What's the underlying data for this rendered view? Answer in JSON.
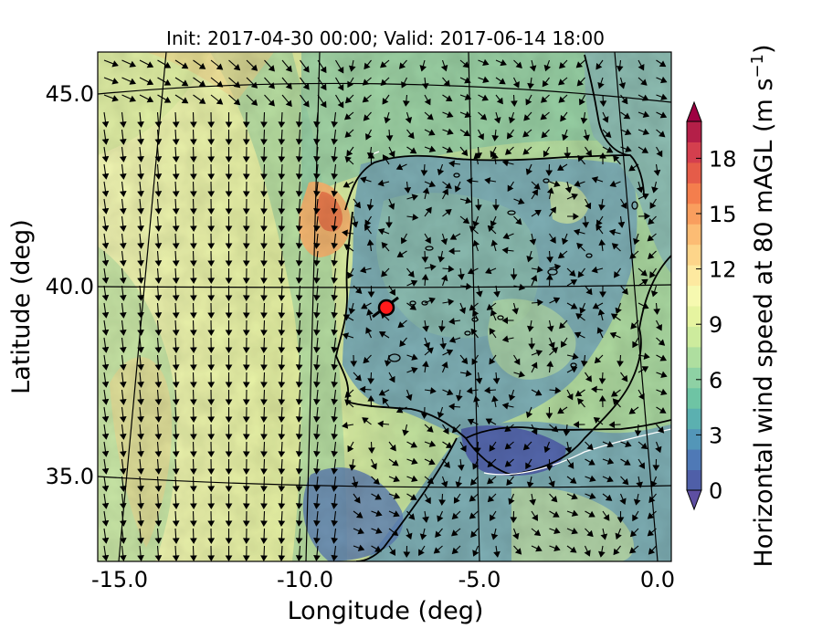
{
  "title": "Init: 2017-04-30 00:00; Valid: 2017-06-14 18:00",
  "xlabel": "Longitude (deg)",
  "ylabel": "Latitude (deg)",
  "colorbar": {
    "label": "Horizontal wind speed at 80 mAGL (m s",
    "unit_exponent": "−1",
    "unit_close": ")",
    "ticks": [
      "0",
      "3",
      "6",
      "9",
      "12",
      "15",
      "18"
    ],
    "colors": [
      "#4f5fa8",
      "#4f79b6",
      "#5396b8",
      "#5bb0b0",
      "#6ec4a4",
      "#8ed1a4",
      "#aede9f",
      "#cdeb9d",
      "#e6f4a0",
      "#f6f9b0",
      "#fde9a0",
      "#fdd58a",
      "#fcbc74",
      "#f99e5e",
      "#f47e4d",
      "#e55c49",
      "#d43f4e",
      "#b41f48"
    ]
  },
  "x_ticks": [
    "-15.0",
    "-10.0",
    "-5.0",
    "0.0"
  ],
  "y_ticks": [
    "45.0",
    "40.0",
    "35.0"
  ],
  "colors": {
    "ocean_light": "#ebf2a3",
    "ocean_green": "#9ed29f",
    "land": "#7fb0b6",
    "sea_blue": "#4f68ae",
    "strong": "#f18a55",
    "marker": "#ff1a1a"
  }
}
